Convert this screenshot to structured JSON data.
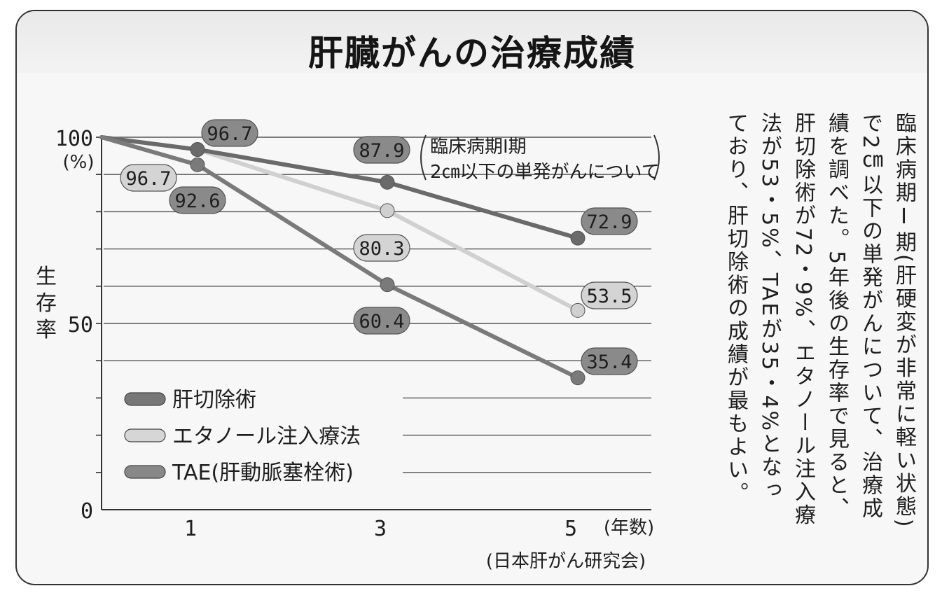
{
  "title": "肝臓がんの治療成績",
  "chart_data": {
    "type": "line",
    "x": [
      0,
      1,
      3,
      5
    ],
    "xticks": [
      "1",
      "3",
      "5"
    ],
    "xunit": "(年数)",
    "yticks": [
      "100",
      "50",
      "0"
    ],
    "yunit": "(%)",
    "ylabel": "生存率",
    "ylim": [
      0,
      100
    ],
    "grid": true,
    "note_line1": "臨床病期Ⅰ期",
    "note_line2": "2㎝以下の単発がんについて",
    "source": "(日本肝がん研究会)",
    "series": [
      {
        "name": "肝切除術",
        "color": "#6a6a6a",
        "values": [
          100,
          96.7,
          87.9,
          72.9
        ],
        "labels": [
          "",
          "96.7",
          "87.9",
          "72.9"
        ]
      },
      {
        "name": "エタノール注入療法",
        "color": "#d0d0d0",
        "values": [
          100,
          96.7,
          80.3,
          53.5
        ],
        "labels": [
          "",
          "96.7",
          "80.3",
          "53.5"
        ]
      },
      {
        "name": "TAE(肝動脈塞栓術)",
        "color": "#7a7a7a",
        "values": [
          100,
          92.6,
          60.4,
          35.4
        ],
        "labels": [
          "",
          "92.6",
          "60.4",
          "35.4"
        ]
      }
    ]
  },
  "side_text": [
    "臨床病期Ⅰ期(肝硬変が非常に軽い状態)",
    "で2㎝以下の単発がんについて、治療成",
    "績を調べた。5年後の生存率で見ると、",
    "肝切除術が72・9%、エタノール注入療",
    "法が53・5%、TAEが35・4%となっ",
    "ており、肝切除術の成績が最もよい。"
  ]
}
